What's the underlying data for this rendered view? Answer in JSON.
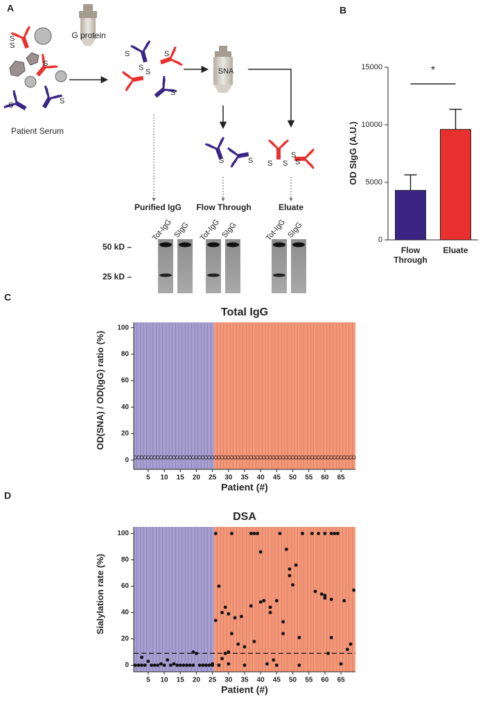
{
  "panel_labels": [
    "A",
    "B",
    "C",
    "D"
  ],
  "diagram": {
    "column_1": "G protein",
    "column_2": "SNA",
    "source": "Patient Serum",
    "sialic_acid": "S",
    "fractions": [
      "Purified IgG",
      "Flow Through",
      "Eluate"
    ],
    "lanes": [
      "Tot-IgG",
      "SIgG"
    ],
    "markers": [
      "50 kD –",
      "25 kD –"
    ]
  },
  "chart_data": [
    {
      "type": "bar",
      "categories": [
        "Flow Through",
        "Eluate"
      ],
      "values": [
        4300,
        9600
      ],
      "errors": [
        1350,
        1750
      ],
      "colors": [
        "#3a2585",
        "#e8312e"
      ],
      "y_label": "OD SIgG (A.U.)",
      "ylim": [
        0,
        15000
      ],
      "yticks": [
        0,
        5000,
        10000,
        15000
      ],
      "annotation": "*"
    },
    {
      "type": "scatter",
      "title": "Total IgG",
      "x_label": "Patient (#)",
      "y_label": "OD(SNA) / OD(IgG) ratio (%)",
      "marker": "open",
      "x": [
        1,
        2,
        3,
        4,
        5,
        6,
        7,
        8,
        9,
        10,
        11,
        12,
        13,
        14,
        15,
        16,
        17,
        18,
        19,
        20,
        21,
        22,
        23,
        24,
        25,
        26,
        27,
        28,
        29,
        30,
        31,
        32,
        33,
        34,
        35,
        36,
        37,
        38,
        39,
        40,
        41,
        42,
        43,
        44,
        45,
        46,
        47,
        48,
        49,
        50,
        51,
        52,
        53,
        54,
        55,
        56,
        57,
        58,
        59,
        60,
        61,
        62,
        63,
        64,
        65,
        66,
        67,
        68,
        69
      ],
      "values": [
        2,
        2,
        2,
        2,
        2,
        2,
        2,
        2,
        2,
        2,
        2,
        2,
        2,
        2,
        2,
        2,
        2,
        2,
        2,
        2,
        2,
        2,
        2,
        2,
        2,
        2,
        2,
        2,
        2,
        2,
        2,
        2,
        2,
        2,
        2,
        2,
        2,
        2,
        2,
        2,
        2,
        2,
        2,
        2,
        2,
        2,
        2,
        2,
        2,
        2,
        2,
        2,
        2,
        2,
        2,
        2,
        2,
        2,
        2,
        2,
        2,
        2,
        2,
        2,
        2,
        2,
        2,
        2,
        2
      ],
      "xlim": [
        0.5,
        69.5
      ],
      "ylim": [
        -7,
        104
      ],
      "xticks": [
        5,
        10,
        15,
        20,
        25,
        30,
        35,
        40,
        45,
        50,
        55,
        60,
        65
      ],
      "yticks": [
        0,
        20,
        40,
        60,
        80,
        100
      ],
      "shaded_regions": [
        {
          "from": 1,
          "to": 25,
          "color": "#a79fd2"
        },
        {
          "from": 26,
          "to": 69,
          "color": "#f79879"
        }
      ]
    },
    {
      "type": "scatter",
      "title": "DSA",
      "x_label": "Patient (#)",
      "y_label": "Sialylation rate (%)",
      "marker": "filled",
      "hline": 9,
      "x": [
        1,
        2,
        3,
        3,
        4,
        5,
        6,
        7,
        8,
        9,
        10,
        11,
        12,
        13,
        14,
        15,
        16,
        17,
        18,
        19,
        19,
        20,
        21,
        22,
        23,
        24,
        25,
        25,
        26,
        26,
        27,
        27,
        28,
        28,
        29,
        29,
        30,
        30,
        30,
        31,
        31,
        32,
        33,
        34,
        35,
        35,
        37,
        37,
        38,
        38,
        39,
        40,
        40,
        41,
        42,
        43,
        43,
        44,
        45,
        45,
        46,
        47,
        47,
        48,
        49,
        49,
        50,
        51,
        52,
        52,
        53,
        56,
        57,
        58,
        59,
        60,
        60,
        60,
        61,
        62,
        62,
        62,
        63,
        64,
        65,
        66,
        67,
        68,
        69
      ],
      "values": [
        0,
        0,
        0,
        6,
        0,
        3,
        0,
        0,
        0,
        1,
        0,
        4,
        0,
        1,
        0,
        0,
        0,
        0,
        0,
        0,
        10,
        9,
        0,
        0,
        0,
        0,
        1,
        0,
        100,
        34,
        60,
        0,
        40,
        5,
        44,
        9,
        39,
        10,
        1,
        100,
        24,
        36,
        16,
        37,
        14,
        0,
        100,
        45,
        100,
        18,
        100,
        86,
        48,
        49,
        1,
        44,
        40,
        4,
        49,
        0,
        100,
        24,
        33,
        88,
        73,
        68,
        61,
        76,
        21,
        0,
        100,
        100,
        56,
        100,
        54,
        100,
        51,
        53,
        9,
        100,
        50,
        21,
        100,
        100,
        1,
        49,
        12,
        16,
        57
      ],
      "xlim": [
        0.5,
        69.5
      ],
      "ylim": [
        -5,
        105
      ],
      "xticks": [
        5,
        10,
        15,
        20,
        25,
        30,
        35,
        40,
        45,
        50,
        55,
        60,
        65
      ],
      "yticks": [
        0,
        20,
        40,
        60,
        80,
        100
      ],
      "shaded_regions": [
        {
          "from": 1,
          "to": 25,
          "color": "#a79fd2"
        },
        {
          "from": 26,
          "to": 69,
          "color": "#f79879"
        }
      ]
    }
  ]
}
